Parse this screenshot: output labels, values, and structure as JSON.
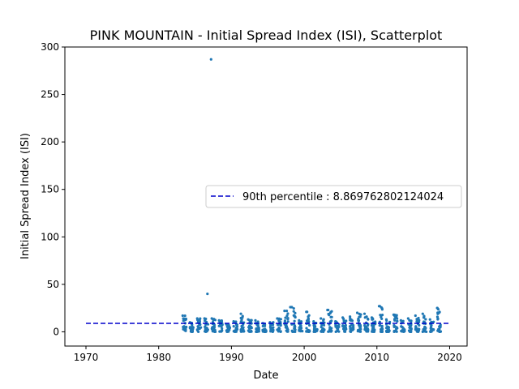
{
  "chart_data": {
    "type": "scatter",
    "title": "PINK MOUNTAIN - Initial Spread Index (ISI), Scatterplot",
    "xlabel": "Date",
    "ylabel": "Initial Spread Index (ISI)",
    "xlim": [
      1967.1,
      2022.4
    ],
    "ylim": [
      -15,
      300
    ],
    "xticks": [
      1970,
      1980,
      1990,
      2000,
      2010,
      2020
    ],
    "yticks": [
      0,
      50,
      100,
      150,
      200,
      250,
      300
    ],
    "legend_position": "center-right",
    "series": [
      {
        "type": "scatter",
        "color": "#1f77b4",
        "seasons": [
          1983.3,
          1984.3,
          1985.3,
          1986.3,
          1987.3,
          1988.3,
          1989.3,
          1990.3,
          1991.3,
          1992.3,
          1993.3,
          1994.3,
          1995.3,
          1996.3,
          1997.3,
          1998.3,
          1999.3,
          2000.3,
          2001.3,
          2002.3,
          2003.3,
          2004.3,
          2005.3,
          2006.3,
          2007.3,
          2008.3,
          2009.3,
          2010.3,
          2011.3,
          2012.3,
          2013.3,
          2014.3,
          2015.3,
          2016.3,
          2017.3,
          2018.3
        ],
        "season_max": [
          17,
          10,
          14,
          14,
          14,
          12,
          8,
          11,
          19,
          13,
          12,
          9,
          10,
          14,
          22,
          26,
          12,
          21,
          11,
          14,
          23,
          11,
          15,
          16,
          20,
          19,
          15,
          27,
          13,
          18,
          12,
          14,
          17,
          19,
          13,
          25
        ],
        "outliers": [
          {
            "x": 1987.2,
            "y": 287
          },
          {
            "x": 1986.7,
            "y": 40
          },
          {
            "x": 1997.6,
            "y": 22
          },
          {
            "x": 1998.1,
            "y": 26
          },
          {
            "x": 2000.4,
            "y": 21
          },
          {
            "x": 2003.2,
            "y": 23
          },
          {
            "x": 2010.4,
            "y": 27
          },
          {
            "x": 2018.3,
            "y": 25
          }
        ]
      },
      {
        "type": "hline",
        "name": "90th percentile : 8.869762802124024",
        "y": 8.869762802124024,
        "x_range": [
          1970,
          2020
        ],
        "color": "#0000cc",
        "style": "dashed"
      }
    ]
  }
}
